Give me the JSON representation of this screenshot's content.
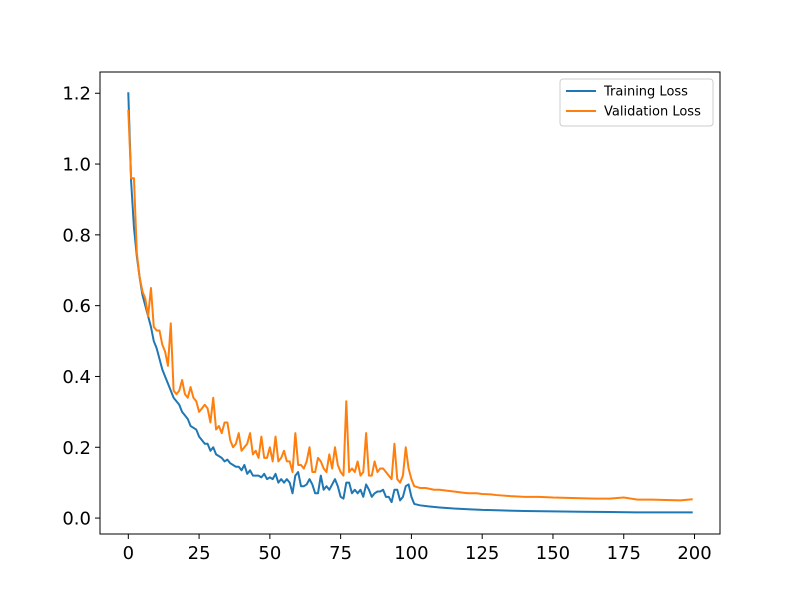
{
  "chart_data": {
    "type": "line",
    "title": "",
    "xlabel": "",
    "ylabel": "",
    "xlim": [
      -10,
      209
    ],
    "ylim": [
      -0.045,
      1.26
    ],
    "xticks": [
      0,
      25,
      50,
      75,
      100,
      125,
      150,
      175,
      200
    ],
    "yticks": [
      0.0,
      0.2,
      0.4,
      0.6,
      0.8,
      1.0,
      1.2
    ],
    "ytick_labels": [
      "0.0",
      "0.2",
      "0.4",
      "0.6",
      "0.8",
      "1.0",
      "1.2"
    ],
    "grid": false,
    "legend_position": "top-right",
    "series": [
      {
        "name": "Training Loss",
        "color": "#1f77b4",
        "points": [
          [
            0,
            1.2
          ],
          [
            1,
            0.95
          ],
          [
            2,
            0.82
          ],
          [
            3,
            0.74
          ],
          [
            4,
            0.68
          ],
          [
            5,
            0.63
          ],
          [
            6,
            0.6
          ],
          [
            7,
            0.57
          ],
          [
            8,
            0.54
          ],
          [
            9,
            0.5
          ],
          [
            10,
            0.48
          ],
          [
            11,
            0.45
          ],
          [
            12,
            0.42
          ],
          [
            13,
            0.4
          ],
          [
            14,
            0.38
          ],
          [
            15,
            0.36
          ],
          [
            16,
            0.34
          ],
          [
            17,
            0.33
          ],
          [
            18,
            0.32
          ],
          [
            19,
            0.3
          ],
          [
            20,
            0.29
          ],
          [
            21,
            0.28
          ],
          [
            22,
            0.26
          ],
          [
            23,
            0.255
          ],
          [
            24,
            0.25
          ],
          [
            25,
            0.23
          ],
          [
            26,
            0.22
          ],
          [
            27,
            0.21
          ],
          [
            28,
            0.21
          ],
          [
            29,
            0.19
          ],
          [
            30,
            0.2
          ],
          [
            31,
            0.18
          ],
          [
            32,
            0.175
          ],
          [
            33,
            0.17
          ],
          [
            34,
            0.16
          ],
          [
            35,
            0.165
          ],
          [
            36,
            0.155
          ],
          [
            37,
            0.15
          ],
          [
            38,
            0.145
          ],
          [
            39,
            0.145
          ],
          [
            40,
            0.135
          ],
          [
            41,
            0.15
          ],
          [
            42,
            0.125
          ],
          [
            43,
            0.135
          ],
          [
            44,
            0.12
          ],
          [
            45,
            0.12
          ],
          [
            46,
            0.12
          ],
          [
            47,
            0.115
          ],
          [
            48,
            0.125
          ],
          [
            49,
            0.11
          ],
          [
            50,
            0.115
          ],
          [
            51,
            0.11
          ],
          [
            52,
            0.125
          ],
          [
            53,
            0.1
          ],
          [
            54,
            0.11
          ],
          [
            55,
            0.1
          ],
          [
            56,
            0.11
          ],
          [
            57,
            0.1
          ],
          [
            58,
            0.07
          ],
          [
            59,
            0.12
          ],
          [
            60,
            0.13
          ],
          [
            61,
            0.09
          ],
          [
            62,
            0.09
          ],
          [
            63,
            0.095
          ],
          [
            64,
            0.11
          ],
          [
            65,
            0.095
          ],
          [
            66,
            0.07
          ],
          [
            67,
            0.07
          ],
          [
            68,
            0.12
          ],
          [
            69,
            0.08
          ],
          [
            70,
            0.09
          ],
          [
            71,
            0.08
          ],
          [
            72,
            0.095
          ],
          [
            73,
            0.11
          ],
          [
            74,
            0.09
          ],
          [
            75,
            0.06
          ],
          [
            76,
            0.055
          ],
          [
            77,
            0.1
          ],
          [
            78,
            0.1
          ],
          [
            79,
            0.07
          ],
          [
            80,
            0.08
          ],
          [
            81,
            0.07
          ],
          [
            82,
            0.08
          ],
          [
            83,
            0.06
          ],
          [
            84,
            0.095
          ],
          [
            85,
            0.08
          ],
          [
            86,
            0.06
          ],
          [
            87,
            0.07
          ],
          [
            88,
            0.075
          ],
          [
            89,
            0.075
          ],
          [
            90,
            0.08
          ],
          [
            91,
            0.06
          ],
          [
            92,
            0.06
          ],
          [
            93,
            0.045
          ],
          [
            94,
            0.08
          ],
          [
            95,
            0.08
          ],
          [
            96,
            0.05
          ],
          [
            97,
            0.06
          ],
          [
            98,
            0.09
          ],
          [
            99,
            0.095
          ],
          [
            100,
            0.06
          ],
          [
            101,
            0.04
          ],
          [
            103,
            0.036
          ],
          [
            106,
            0.033
          ],
          [
            110,
            0.03
          ],
          [
            115,
            0.027
          ],
          [
            120,
            0.025
          ],
          [
            125,
            0.023
          ],
          [
            130,
            0.022
          ],
          [
            140,
            0.02
          ],
          [
            150,
            0.019
          ],
          [
            160,
            0.018
          ],
          [
            170,
            0.017
          ],
          [
            180,
            0.016
          ],
          [
            190,
            0.016
          ],
          [
            199,
            0.016
          ]
        ]
      },
      {
        "name": "Validation Loss",
        "color": "#ff7f0e",
        "points": [
          [
            0,
            1.15
          ],
          [
            1,
            0.96
          ],
          [
            2,
            0.96
          ],
          [
            3,
            0.75
          ],
          [
            4,
            0.68
          ],
          [
            5,
            0.64
          ],
          [
            6,
            0.62
          ],
          [
            7,
            0.57
          ],
          [
            8,
            0.65
          ],
          [
            9,
            0.54
          ],
          [
            10,
            0.53
          ],
          [
            11,
            0.53
          ],
          [
            12,
            0.49
          ],
          [
            13,
            0.47
          ],
          [
            14,
            0.43
          ],
          [
            15,
            0.55
          ],
          [
            16,
            0.36
          ],
          [
            17,
            0.35
          ],
          [
            18,
            0.36
          ],
          [
            19,
            0.39
          ],
          [
            20,
            0.35
          ],
          [
            21,
            0.34
          ],
          [
            22,
            0.37
          ],
          [
            23,
            0.34
          ],
          [
            24,
            0.33
          ],
          [
            25,
            0.3
          ],
          [
            26,
            0.31
          ],
          [
            27,
            0.32
          ],
          [
            28,
            0.31
          ],
          [
            29,
            0.27
          ],
          [
            30,
            0.34
          ],
          [
            31,
            0.25
          ],
          [
            32,
            0.26
          ],
          [
            33,
            0.24
          ],
          [
            34,
            0.27
          ],
          [
            35,
            0.27
          ],
          [
            36,
            0.22
          ],
          [
            37,
            0.2
          ],
          [
            38,
            0.21
          ],
          [
            39,
            0.24
          ],
          [
            40,
            0.19
          ],
          [
            41,
            0.2
          ],
          [
            42,
            0.21
          ],
          [
            43,
            0.24
          ],
          [
            44,
            0.18
          ],
          [
            45,
            0.19
          ],
          [
            46,
            0.17
          ],
          [
            47,
            0.23
          ],
          [
            48,
            0.17
          ],
          [
            49,
            0.17
          ],
          [
            50,
            0.2
          ],
          [
            51,
            0.16
          ],
          [
            52,
            0.23
          ],
          [
            53,
            0.16
          ],
          [
            54,
            0.17
          ],
          [
            55,
            0.19
          ],
          [
            56,
            0.16
          ],
          [
            57,
            0.16
          ],
          [
            58,
            0.13
          ],
          [
            59,
            0.24
          ],
          [
            60,
            0.15
          ],
          [
            61,
            0.15
          ],
          [
            62,
            0.14
          ],
          [
            63,
            0.16
          ],
          [
            64,
            0.2
          ],
          [
            65,
            0.13
          ],
          [
            66,
            0.13
          ],
          [
            67,
            0.17
          ],
          [
            68,
            0.16
          ],
          [
            69,
            0.14
          ],
          [
            70,
            0.13
          ],
          [
            71,
            0.18
          ],
          [
            72,
            0.14
          ],
          [
            73,
            0.2
          ],
          [
            74,
            0.15
          ],
          [
            75,
            0.13
          ],
          [
            76,
            0.12
          ],
          [
            77,
            0.33
          ],
          [
            78,
            0.13
          ],
          [
            79,
            0.14
          ],
          [
            80,
            0.13
          ],
          [
            81,
            0.16
          ],
          [
            82,
            0.12
          ],
          [
            83,
            0.13
          ],
          [
            84,
            0.24
          ],
          [
            85,
            0.12
          ],
          [
            86,
            0.12
          ],
          [
            87,
            0.16
          ],
          [
            88,
            0.13
          ],
          [
            89,
            0.14
          ],
          [
            90,
            0.14
          ],
          [
            91,
            0.13
          ],
          [
            92,
            0.12
          ],
          [
            93,
            0.11
          ],
          [
            94,
            0.21
          ],
          [
            95,
            0.11
          ],
          [
            96,
            0.1
          ],
          [
            97,
            0.12
          ],
          [
            98,
            0.2
          ],
          [
            99,
            0.14
          ],
          [
            100,
            0.11
          ],
          [
            101,
            0.09
          ],
          [
            103,
            0.085
          ],
          [
            105,
            0.085
          ],
          [
            108,
            0.08
          ],
          [
            110,
            0.08
          ],
          [
            112,
            0.078
          ],
          [
            115,
            0.075
          ],
          [
            118,
            0.072
          ],
          [
            120,
            0.07
          ],
          [
            123,
            0.07
          ],
          [
            125,
            0.068
          ],
          [
            128,
            0.067
          ],
          [
            130,
            0.065
          ],
          [
            135,
            0.062
          ],
          [
            140,
            0.06
          ],
          [
            145,
            0.06
          ],
          [
            150,
            0.058
          ],
          [
            155,
            0.057
          ],
          [
            160,
            0.056
          ],
          [
            165,
            0.055
          ],
          [
            170,
            0.055
          ],
          [
            175,
            0.058
          ],
          [
            180,
            0.052
          ],
          [
            185,
            0.052
          ],
          [
            190,
            0.051
          ],
          [
            195,
            0.05
          ],
          [
            199,
            0.053
          ]
        ]
      }
    ]
  }
}
